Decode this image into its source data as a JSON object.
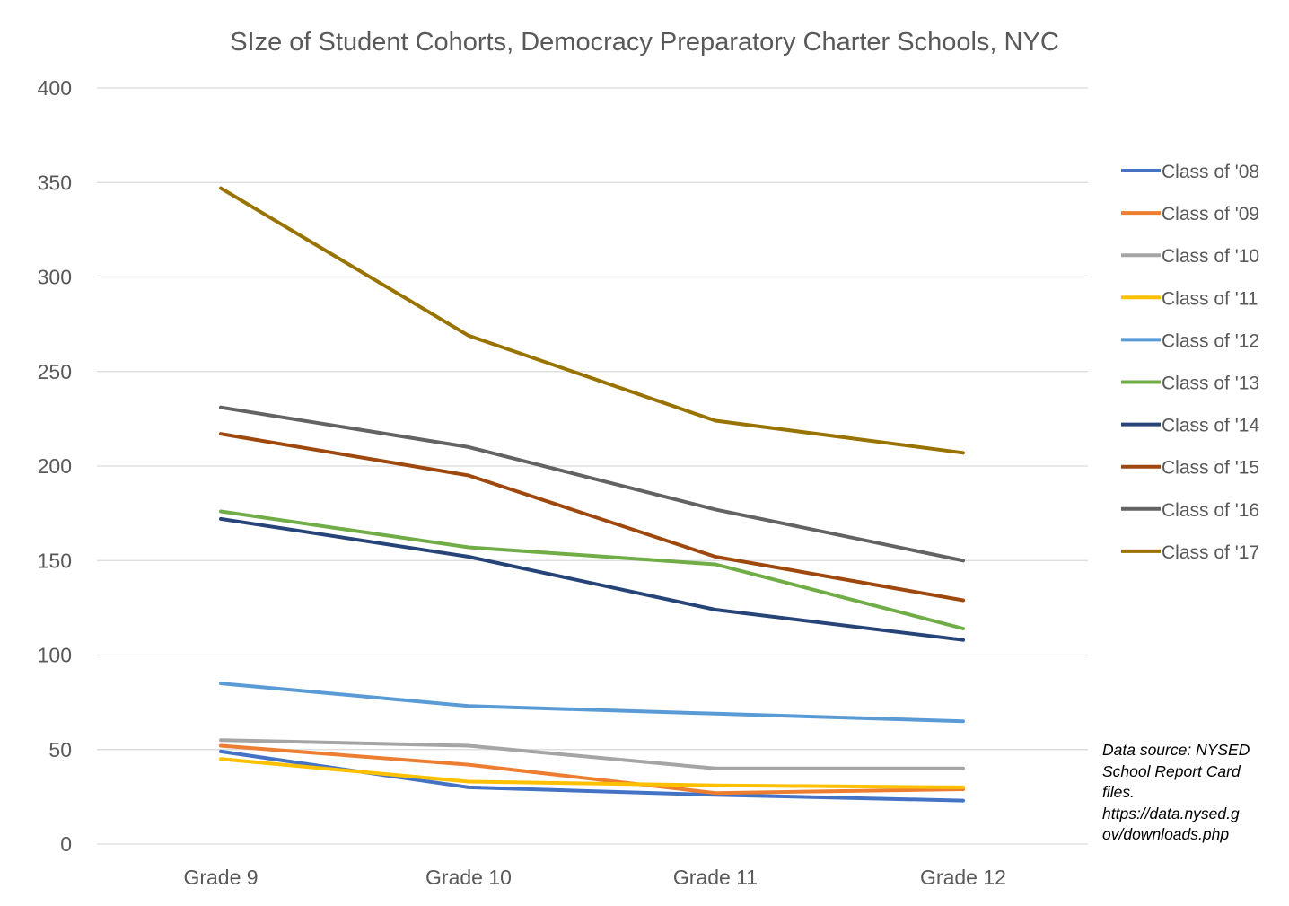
{
  "chart_data": {
    "type": "line",
    "title": "SIze of Student Cohorts, Democracy Preparatory Charter Schools, NYC",
    "categories": [
      "Grade 9",
      "Grade 10",
      "Grade 11",
      "Grade 12"
    ],
    "ylim": [
      0,
      400
    ],
    "yticks": [
      0,
      50,
      100,
      150,
      200,
      250,
      300,
      350,
      400
    ],
    "grid": true,
    "legend_position": "right",
    "series": [
      {
        "name": "Class of '08",
        "color": "#4472C4",
        "values": [
          49,
          30,
          26,
          23
        ]
      },
      {
        "name": "Class of '09",
        "color": "#ED7D31",
        "values": [
          52,
          42,
          27,
          29
        ]
      },
      {
        "name": "Class of '10",
        "color": "#A5A5A5",
        "values": [
          55,
          52,
          40,
          40
        ]
      },
      {
        "name": "Class of '11",
        "color": "#FFC000",
        "values": [
          45,
          33,
          31,
          30
        ]
      },
      {
        "name": "Class of '12",
        "color": "#5B9BD5",
        "values": [
          85,
          73,
          69,
          65
        ]
      },
      {
        "name": "Class of '13",
        "color": "#70AD47",
        "values": [
          176,
          157,
          148,
          114
        ]
      },
      {
        "name": "Class of '14",
        "color": "#264478",
        "values": [
          172,
          152,
          124,
          108
        ]
      },
      {
        "name": "Class of '15",
        "color": "#9E480E",
        "values": [
          217,
          195,
          152,
          129
        ]
      },
      {
        "name": "Class of '16",
        "color": "#636363",
        "values": [
          231,
          210,
          177,
          150
        ]
      },
      {
        "name": "Class of '17",
        "color": "#997300",
        "values": [
          347,
          269,
          224,
          207
        ]
      }
    ]
  },
  "note": {
    "lines": [
      "Data source: NYSED",
      "School Report Card",
      "files.",
      "https://data.nysed.g",
      "ov/downloads.php"
    ]
  }
}
